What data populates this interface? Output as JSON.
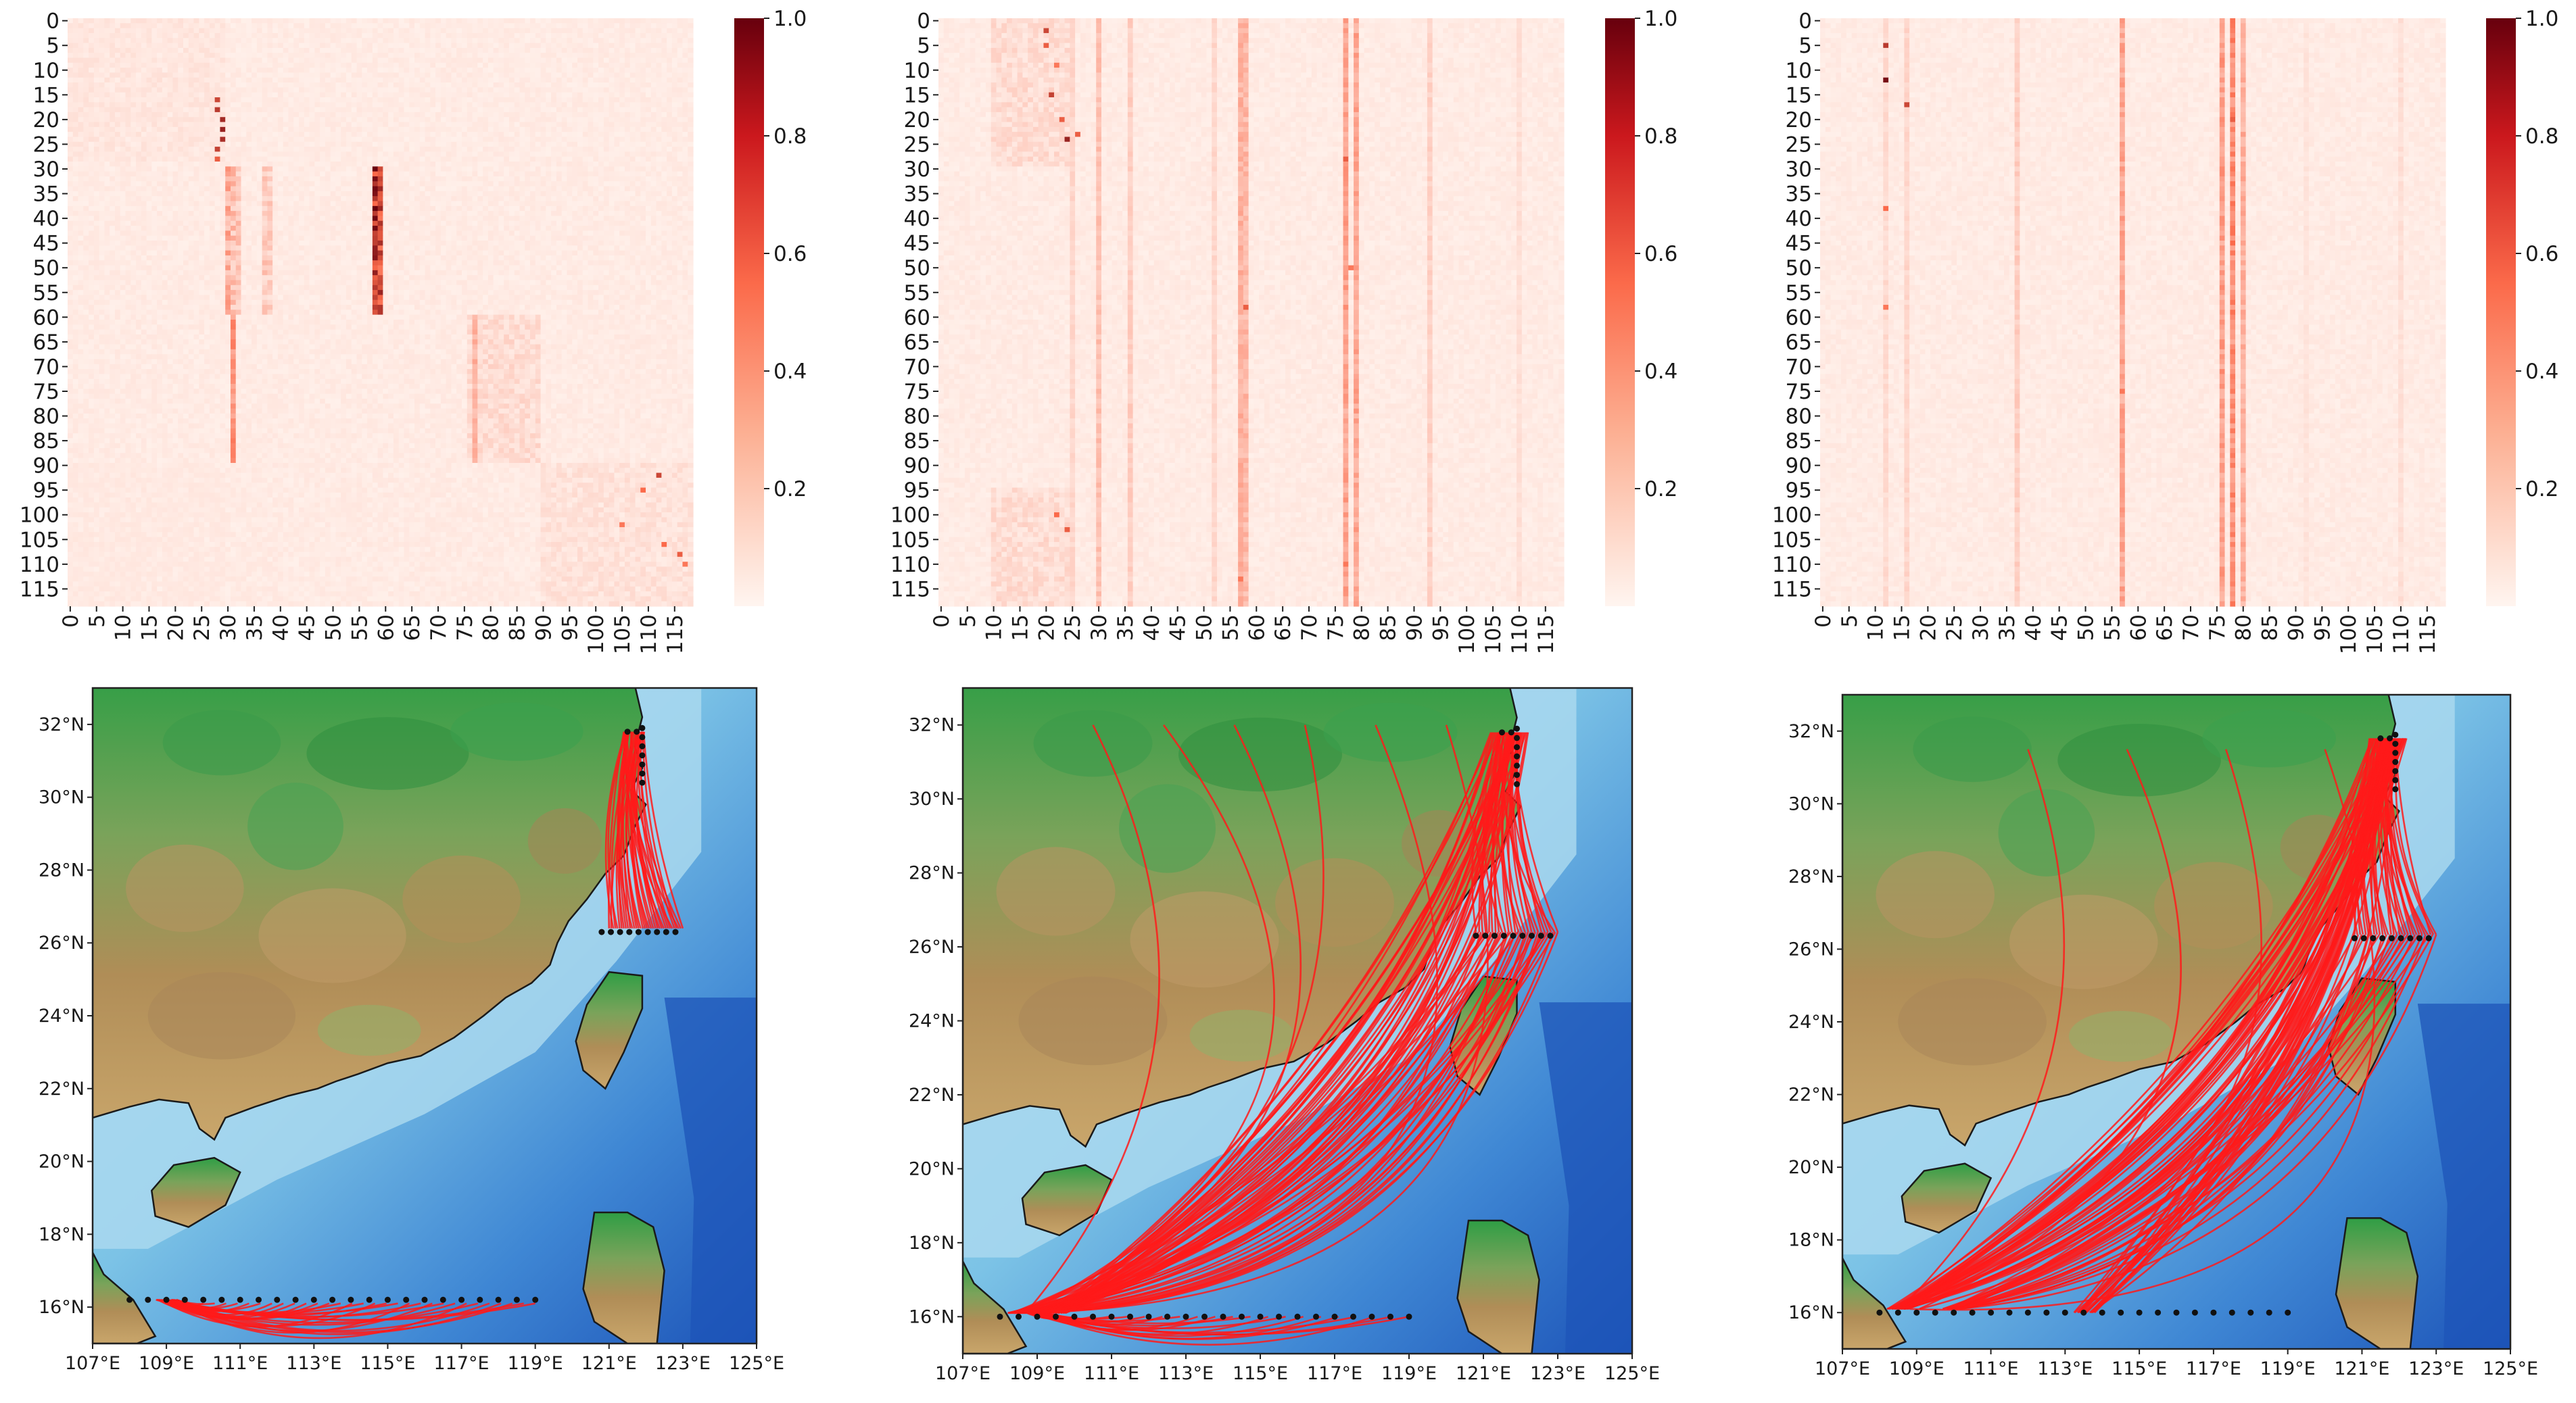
{
  "figure": {
    "colors": {
      "heat_low": "#fff5f0",
      "heat_mid": "#fb6a4a",
      "heat_high": "#67000d",
      "link": "#ff1a1a",
      "node": "#111111",
      "land_low": "#2f9e45",
      "land_high": "#b08d57",
      "sea_shallow": "#a9d8ef",
      "sea_deep": "#1d54b8"
    },
    "colorbar_ticks": [
      "0.2",
      "0.4",
      "0.6",
      "0.8",
      "1.0"
    ]
  },
  "chart_data": [
    {
      "type": "heatmap",
      "panel": "top-left",
      "size": 119,
      "tick_labels": [
        "0",
        "5",
        "10",
        "15",
        "20",
        "25",
        "30",
        "35",
        "40",
        "45",
        "50",
        "55",
        "60",
        "65",
        "70",
        "75",
        "80",
        "85",
        "90",
        "95",
        "100",
        "105",
        "110",
        "115"
      ],
      "value_range": [
        0,
        1.0
      ],
      "blocks": [
        [
          0,
          29,
          0,
          30,
          0.07
        ],
        [
          30,
          60,
          30,
          31,
          0.35
        ],
        [
          30,
          60,
          32,
          33,
          0.22
        ],
        [
          30,
          60,
          37,
          38,
          0.2
        ],
        [
          30,
          60,
          38,
          39,
          0.18
        ],
        [
          30,
          90,
          31,
          32,
          0.25
        ],
        [
          60,
          90,
          76,
          90,
          0.12
        ],
        [
          90,
          119,
          90,
          119,
          0.09
        ],
        [
          90,
          119,
          0,
          30,
          0.05
        ]
      ],
      "stripes": [
        [
          30,
          60,
          58,
          59,
          0.92
        ],
        [
          30,
          60,
          59,
          60,
          0.78
        ],
        [
          60,
          90,
          31,
          32,
          0.45
        ],
        [
          60,
          90,
          77,
          78,
          0.3
        ]
      ],
      "spots": [
        [
          16,
          28,
          0.7
        ],
        [
          18,
          28,
          0.75
        ],
        [
          20,
          29,
          0.82
        ],
        [
          22,
          29,
          0.85
        ],
        [
          24,
          29,
          0.8
        ],
        [
          26,
          28,
          0.72
        ],
        [
          28,
          28,
          0.6
        ],
        [
          92,
          112,
          0.7
        ],
        [
          95,
          109,
          0.55
        ],
        [
          102,
          105,
          0.5
        ],
        [
          106,
          113,
          0.55
        ],
        [
          108,
          116,
          0.6
        ],
        [
          110,
          117,
          0.5
        ]
      ]
    },
    {
      "type": "heatmap",
      "panel": "top-middle",
      "size": 119,
      "tick_labels": [
        "0",
        "5",
        "10",
        "15",
        "20",
        "25",
        "30",
        "35",
        "40",
        "45",
        "50",
        "55",
        "60",
        "65",
        "70",
        "75",
        "80",
        "85",
        "90",
        "95",
        "100",
        "105",
        "110",
        "115"
      ],
      "value_range": [
        0,
        1.0
      ],
      "blocks": [
        [
          0,
          30,
          10,
          26,
          0.12
        ],
        [
          95,
          119,
          10,
          26,
          0.12
        ]
      ],
      "stripes": [
        [
          0,
          119,
          57,
          58,
          0.3
        ],
        [
          0,
          119,
          58,
          59,
          0.28
        ],
        [
          0,
          119,
          77,
          78,
          0.38
        ],
        [
          0,
          119,
          79,
          80,
          0.36
        ],
        [
          0,
          119,
          30,
          31,
          0.24
        ],
        [
          0,
          119,
          36,
          37,
          0.18
        ],
        [
          0,
          119,
          25,
          26,
          0.14
        ],
        [
          0,
          119,
          52,
          53,
          0.14
        ],
        [
          0,
          119,
          93,
          94,
          0.16
        ],
        [
          0,
          119,
          110,
          111,
          0.1
        ]
      ],
      "spots": [
        [
          2,
          20,
          0.7
        ],
        [
          5,
          20,
          0.6
        ],
        [
          9,
          22,
          0.5
        ],
        [
          15,
          21,
          0.72
        ],
        [
          20,
          23,
          0.6
        ],
        [
          24,
          24,
          0.85
        ],
        [
          23,
          26,
          0.6
        ],
        [
          28,
          77,
          0.6
        ],
        [
          50,
          78,
          0.5
        ],
        [
          58,
          58,
          0.6
        ],
        [
          100,
          22,
          0.55
        ],
        [
          103,
          24,
          0.6
        ],
        [
          110,
          77,
          0.5
        ],
        [
          113,
          57,
          0.5
        ]
      ]
    },
    {
      "type": "heatmap",
      "panel": "top-right",
      "size": 119,
      "tick_labels": [
        "0",
        "5",
        "10",
        "15",
        "20",
        "25",
        "30",
        "35",
        "40",
        "45",
        "50",
        "55",
        "60",
        "65",
        "70",
        "75",
        "80",
        "85",
        "90",
        "95",
        "100",
        "105",
        "110",
        "115"
      ],
      "value_range": [
        0,
        1.0
      ],
      "blocks": [],
      "stripes": [
        [
          0,
          119,
          57,
          58,
          0.36
        ],
        [
          0,
          119,
          76,
          77,
          0.4
        ],
        [
          0,
          119,
          78,
          79,
          0.48
        ],
        [
          0,
          119,
          80,
          81,
          0.32
        ],
        [
          0,
          119,
          37,
          38,
          0.18
        ],
        [
          0,
          119,
          12,
          13,
          0.12
        ],
        [
          0,
          119,
          16,
          17,
          0.14
        ],
        [
          0,
          119,
          110,
          111,
          0.1
        ],
        [
          0,
          119,
          92,
          93,
          0.08
        ]
      ],
      "spots": [
        [
          5,
          12,
          0.75
        ],
        [
          12,
          12,
          0.95
        ],
        [
          17,
          16,
          0.7
        ],
        [
          38,
          12,
          0.55
        ],
        [
          58,
          12,
          0.5
        ],
        [
          20,
          78,
          0.6
        ],
        [
          45,
          78,
          0.55
        ],
        [
          75,
          57,
          0.5
        ]
      ]
    },
    {
      "type": "map",
      "panel": "bottom-left",
      "lon_range": [
        107,
        125
      ],
      "lat_range": [
        15,
        33
      ],
      "x_ticks": [
        "107°E",
        "109°E",
        "111°E",
        "113°E",
        "115°E",
        "117°E",
        "119°E",
        "121°E",
        "123°E",
        "125°E"
      ],
      "y_ticks": [
        "16°N",
        "18°N",
        "20°N",
        "22°N",
        "24°N",
        "26°N",
        "28°N",
        "30°N",
        "32°N"
      ],
      "node_rows": [
        [
          16.2,
          108,
          119,
          0.5
        ],
        [
          26.3,
          120.8,
          123,
          0.25
        ],
        [
          31.8,
          121.5,
          121.9,
          0.25
        ]
      ],
      "link_groups": [
        [
          121.7,
          31.8,
          121,
          123,
          26.4,
          36,
          0.1
        ],
        [
          109,
          16.2,
          110,
          119,
          16.1,
          30,
          0.18
        ]
      ]
    },
    {
      "type": "map",
      "panel": "bottom-middle",
      "lon_range": [
        107,
        125
      ],
      "lat_range": [
        15,
        33
      ],
      "x_ticks": [
        "107°E",
        "109°E",
        "111°E",
        "113°E",
        "115°E",
        "117°E",
        "119°E",
        "121°E",
        "123°E",
        "125°E"
      ],
      "y_ticks": [
        "16°N",
        "18°N",
        "20°N",
        "22°N",
        "24°N",
        "26°N",
        "28°N",
        "30°N",
        "32°N"
      ],
      "node_rows": [
        [
          16.0,
          108,
          119,
          0.5
        ],
        [
          26.3,
          120.8,
          123,
          0.25
        ],
        [
          31.8,
          121.5,
          121.9,
          0.25
        ]
      ],
      "link_groups": [
        [
          108.5,
          16.1,
          120.8,
          123,
          26.4,
          34,
          0.25
        ],
        [
          109.5,
          16.1,
          121.2,
          122.2,
          31.8,
          34,
          0.22
        ],
        [
          121.7,
          31.8,
          120.8,
          123,
          26.4,
          26,
          0.12
        ],
        [
          109,
          16.1,
          110,
          119,
          16.0,
          20,
          0.12
        ],
        [
          108.8,
          16.1,
          110.5,
          120,
          32.0,
          6,
          0.45
        ]
      ]
    },
    {
      "type": "map",
      "panel": "bottom-right",
      "lon_range": [
        107,
        125
      ],
      "lat_range": [
        15,
        33
      ],
      "x_ticks": [
        "107°E",
        "109°E",
        "111°E",
        "113°E",
        "115°E",
        "117°E",
        "119°E",
        "121°E",
        "123°E",
        "125°E"
      ],
      "y_ticks": [
        "16°N",
        "18°N",
        "20°N",
        "22°N",
        "24°N",
        "26°N",
        "28°N",
        "30°N",
        "32°N"
      ],
      "node_rows": [
        [
          16.0,
          108,
          119,
          0.5
        ],
        [
          26.3,
          120.8,
          123,
          0.25
        ],
        [
          31.8,
          121.5,
          121.9,
          0.25
        ]
      ],
      "link_groups": [
        [
          108.5,
          16.1,
          121.2,
          122.2,
          31.8,
          46,
          0.24
        ],
        [
          110,
          16.1,
          120.8,
          123,
          26.4,
          24,
          0.22
        ],
        [
          121.7,
          31.8,
          120.8,
          123,
          26.4,
          30,
          0.12
        ],
        [
          113.5,
          16.0,
          121.7,
          121.9,
          31.8,
          20,
          0.18
        ],
        [
          108.8,
          16.1,
          112,
          120,
          31.5,
          4,
          0.5
        ]
      ]
    }
  ]
}
